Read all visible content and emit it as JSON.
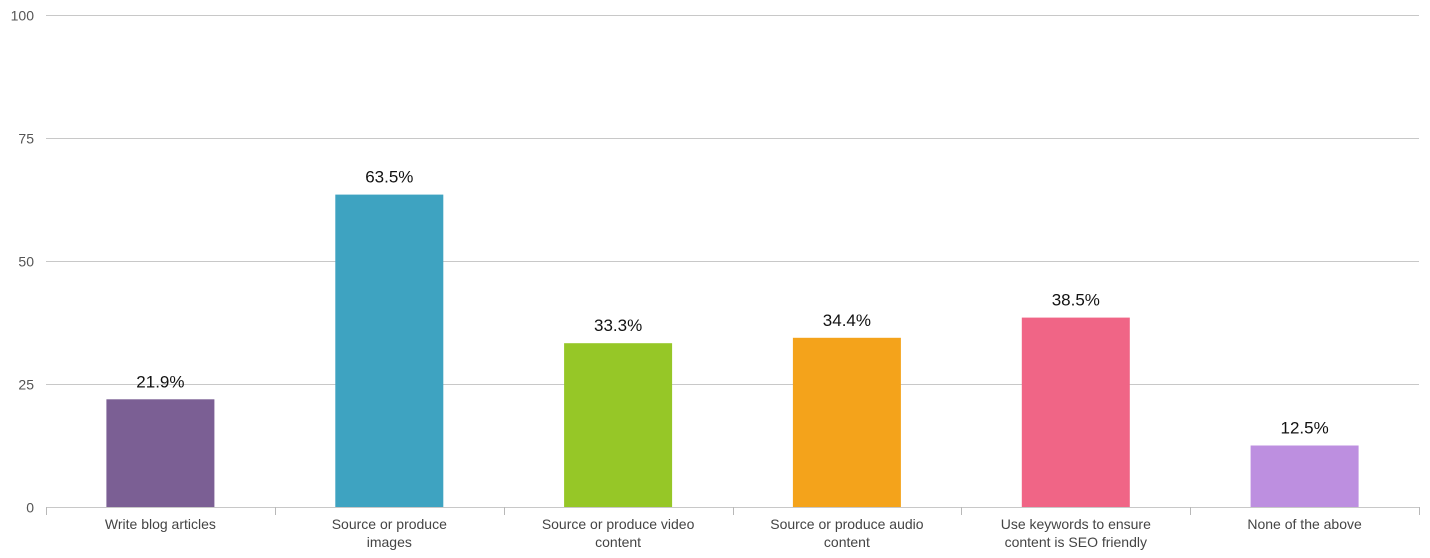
{
  "chart_data": {
    "type": "bar",
    "categories": [
      "Write blog articles",
      "Source or produce images",
      "Source or produce video content",
      "Source or produce audio content",
      "Use keywords to ensure content is SEO friendly",
      "None of the above"
    ],
    "category_lines": [
      [
        "Write blog articles"
      ],
      [
        "Source or produce",
        "images"
      ],
      [
        "Source or produce video",
        "content"
      ],
      [
        "Source or produce audio",
        "content"
      ],
      [
        "Use keywords to ensure",
        "content is SEO friendly"
      ],
      [
        "None of the above"
      ]
    ],
    "values": [
      21.9,
      63.5,
      33.3,
      34.4,
      38.5,
      12.5
    ],
    "data_labels": [
      "21.9%",
      "63.5%",
      "33.3%",
      "34.4%",
      "38.5%",
      "12.5%"
    ],
    "colors": [
      "#7b5f94",
      "#3ea3c1",
      "#96c727",
      "#f4a31b",
      "#f06586",
      "#bd8fe0"
    ],
    "ylim": [
      0,
      100
    ],
    "yticks": [
      0,
      25,
      50,
      75,
      100
    ],
    "grid": true,
    "legend": "none",
    "title": "",
    "xlabel": "",
    "ylabel": ""
  }
}
